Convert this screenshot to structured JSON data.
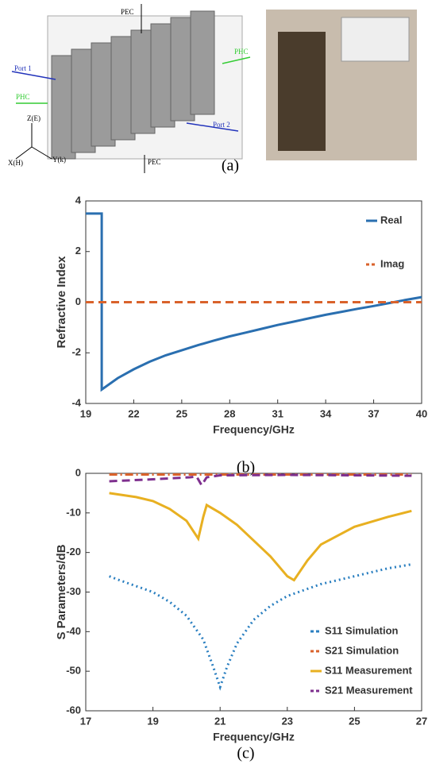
{
  "figure_a": {
    "labels": [
      "PEC",
      "Port 1",
      "PHC",
      "PHC",
      "Port 2",
      "Z(E)",
      "X(H)",
      "Y(k)",
      "PEC"
    ],
    "caption": "(a)"
  },
  "chart_data": [
    {
      "type": "line",
      "caption": "(b)",
      "xlabel": "Frequency/GHz",
      "ylabel": "Refractive Index",
      "xlim": [
        19,
        40
      ],
      "xticks": [
        19,
        22,
        25,
        28,
        31,
        34,
        37,
        40
      ],
      "ylim": [
        -4,
        4
      ],
      "yticks": [
        -4,
        -2,
        0,
        2,
        4
      ],
      "legend": "upper right",
      "series": [
        {
          "name": "Real",
          "color": "#2a6fb0",
          "style": "solid",
          "x": [
            19,
            20,
            20,
            21,
            22,
            23,
            24,
            25,
            26,
            27,
            28,
            29,
            30,
            31,
            32,
            33,
            34,
            35,
            36,
            37,
            38,
            39,
            40
          ],
          "values": [
            3.5,
            3.5,
            -3.45,
            -3.0,
            -2.65,
            -2.35,
            -2.1,
            -1.9,
            -1.7,
            -1.52,
            -1.35,
            -1.2,
            -1.05,
            -0.9,
            -0.77,
            -0.63,
            -0.5,
            -0.38,
            -0.26,
            -0.15,
            -0.03,
            0.09,
            0.2
          ]
        },
        {
          "name": "Imag",
          "color": "#d9622b",
          "style": "dashed",
          "x": [
            19,
            40
          ],
          "values": [
            0,
            0
          ]
        }
      ]
    },
    {
      "type": "line",
      "caption": "(c)",
      "xlabel": "Frequency/GHz",
      "ylabel": "S Parameters/dB",
      "xlim": [
        17,
        27
      ],
      "xticks": [
        17,
        19,
        21,
        23,
        25,
        27
      ],
      "ylim": [
        -60,
        0
      ],
      "yticks": [
        -60,
        -50,
        -40,
        -30,
        -20,
        -10,
        0
      ],
      "legend": "lower right",
      "series": [
        {
          "name": "S11 Simulation",
          "color": "#2a7fc0",
          "style": "dotted",
          "x": [
            17.7,
            18,
            18.5,
            19,
            19.5,
            20,
            20.5,
            20.8,
            21,
            21.2,
            21.5,
            22,
            22.5,
            23,
            24,
            25,
            26,
            26.7
          ],
          "values": [
            -26,
            -27,
            -28.5,
            -30,
            -32.5,
            -36,
            -42,
            -49,
            -54,
            -49,
            -43,
            -37,
            -33.5,
            -31,
            -28,
            -26,
            -24,
            -23
          ]
        },
        {
          "name": "S21 Simulation",
          "color": "#d9622b",
          "style": "dashdot",
          "x": [
            17.7,
            26.7
          ],
          "values": [
            -0.3,
            -0.3
          ]
        },
        {
          "name": "S11 Measurement",
          "color": "#e8b021",
          "style": "solid",
          "x": [
            17.7,
            18.5,
            19,
            19.5,
            20,
            20.35,
            20.5,
            20.6,
            21,
            21.5,
            22,
            22.5,
            23,
            23.2,
            23.6,
            24,
            25,
            26,
            26.7
          ],
          "values": [
            -5,
            -6,
            -7,
            -9,
            -12,
            -16.5,
            -11,
            -8,
            -10,
            -13,
            -17,
            -21,
            -26,
            -27,
            -22,
            -18,
            -13.5,
            -11,
            -9.5
          ]
        },
        {
          "name": "S21 Measurement",
          "color": "#7e2f8e",
          "style": "dashed",
          "x": [
            17.7,
            19,
            20.1,
            20.3,
            20.45,
            20.6,
            21,
            23,
            25,
            26.7
          ],
          "values": [
            -2,
            -1.5,
            -1,
            -0.8,
            -3,
            -1,
            -0.5,
            -0.4,
            -0.5,
            -0.6
          ]
        }
      ]
    }
  ]
}
